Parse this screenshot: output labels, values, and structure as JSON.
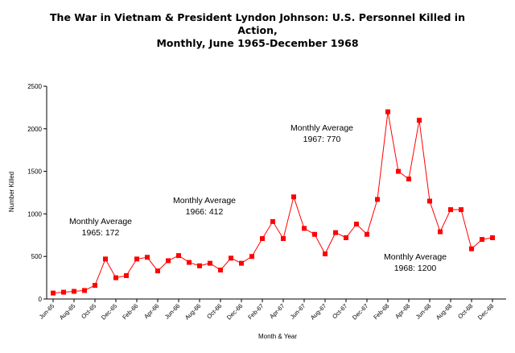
{
  "chart_data": {
    "type": "line",
    "title": [
      "The War in Vietnam & President Lyndon Johnson:  U.S. Personnel Killed in",
      "Action,",
      "Monthly, June 1965-December 1968"
    ],
    "xlabel": "Month & Year",
    "ylabel": "Number Killed",
    "ylim": [
      0,
      2500
    ],
    "yticks": [
      "0",
      "500",
      "1000",
      "1500",
      "2000",
      "2500"
    ],
    "tick_labels": [
      "Jun-65",
      "Aug-65",
      "Oct-65",
      "Dec-65",
      "Feb-66",
      "Apr-66",
      "Jun-66",
      "Aug-66",
      "Oct-66",
      "Dec-66",
      "Feb-67",
      "Apr-67",
      "Jun-67",
      "Aug-67",
      "Oct-67",
      "Dec-67",
      "Feb-68",
      "Apr-68",
      "Jun-68",
      "Aug-68",
      "Oct-68",
      "Dec-68"
    ],
    "x": [
      "Jun-65",
      "Jul-65",
      "Aug-65",
      "Sep-65",
      "Oct-65",
      "Nov-65",
      "Dec-65",
      "Jan-66",
      "Feb-66",
      "Mar-66",
      "Apr-66",
      "May-66",
      "Jun-66",
      "Jul-66",
      "Aug-66",
      "Sep-66",
      "Oct-66",
      "Nov-66",
      "Dec-66",
      "Jan-67",
      "Feb-67",
      "Mar-67",
      "Apr-67",
      "May-67",
      "Jun-67",
      "Jul-67",
      "Aug-67",
      "Sep-67",
      "Oct-67",
      "Nov-67",
      "Dec-67",
      "Jan-68",
      "Feb-68",
      "Mar-68",
      "Apr-68",
      "May-68",
      "Jun-68",
      "Jul-68",
      "Aug-68",
      "Sep-68",
      "Oct-68",
      "Nov-68",
      "Dec-68"
    ],
    "values": [
      70,
      80,
      90,
      100,
      160,
      470,
      250,
      275,
      470,
      490,
      330,
      450,
      510,
      430,
      390,
      420,
      340,
      480,
      420,
      500,
      710,
      910,
      710,
      1200,
      830,
      760,
      530,
      780,
      720,
      880,
      760,
      1170,
      2200,
      1500,
      1410,
      2100,
      1150,
      790,
      1050,
      1050,
      590,
      700,
      720
    ],
    "color": "#ff0000",
    "annotations": [
      {
        "lines": [
          "Monthly Average",
          "1965: 172"
        ]
      },
      {
        "lines": [
          "Monthly Average",
          "1966: 412"
        ]
      },
      {
        "lines": [
          "Monthly Average",
          "1967: 770"
        ]
      },
      {
        "lines": [
          "Monthly Average",
          "1968: 1200"
        ]
      }
    ]
  }
}
